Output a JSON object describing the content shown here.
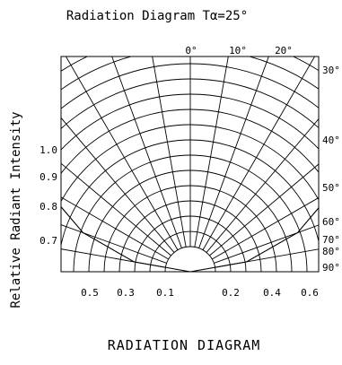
{
  "chart_data": {
    "type": "polar-radiation",
    "title": "Radiation Diagram  Tα=25°",
    "caption": "RADIATION DIAGRAM",
    "ylabel": "Relative Radiant Intensity",
    "angle_labels_top": [
      "0°",
      "10°",
      "20°"
    ],
    "angle_labels_right": [
      "30°",
      "40°",
      "50°",
      "60°",
      "70°",
      "80°",
      "90°"
    ],
    "intensity_labels_left": [
      "1.0",
      "0.9",
      "0.8",
      "0.7"
    ],
    "bottom_left_labels": [
      "0.5",
      "0.3",
      "0.1"
    ],
    "bottom_right_labels": [
      "0.2",
      "0.4",
      "0.6"
    ],
    "pattern": {
      "angles_deg": [
        0,
        10,
        20,
        30,
        40,
        50,
        60,
        70,
        80,
        90
      ],
      "relative_intensity": [
        1.0,
        0.98,
        0.94,
        0.87,
        0.77,
        0.64,
        0.5,
        0.34,
        0.17,
        0.0
      ]
    },
    "grid": true
  }
}
